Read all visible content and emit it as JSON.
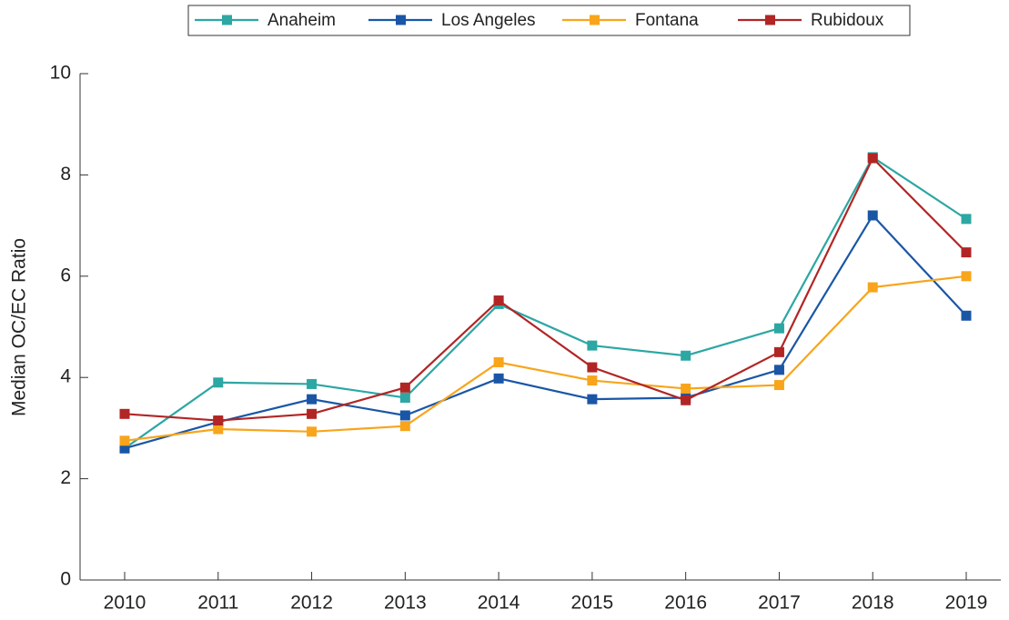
{
  "chart_data": {
    "type": "line",
    "ylabel": "Median OC/EC Ratio",
    "categories": [
      "2010",
      "2011",
      "2012",
      "2013",
      "2014",
      "2015",
      "2016",
      "2017",
      "2018",
      "2019"
    ],
    "series": [
      {
        "name": "Anaheim",
        "color": "#2ca7a4",
        "values": [
          2.6,
          3.9,
          3.87,
          3.6,
          5.45,
          4.63,
          4.43,
          4.97,
          8.35,
          7.13
        ]
      },
      {
        "name": "Los Angeles",
        "color": "#1a56a6",
        "values": [
          2.6,
          3.12,
          3.57,
          3.25,
          3.98,
          3.57,
          3.6,
          4.15,
          7.2,
          5.22
        ]
      },
      {
        "name": "Fontana",
        "color": "#f8a51c",
        "values": [
          2.75,
          2.98,
          2.93,
          3.04,
          4.3,
          3.94,
          3.78,
          3.85,
          5.78,
          6.0
        ]
      },
      {
        "name": "Rubidoux",
        "color": "#b22525",
        "values": [
          3.28,
          3.15,
          3.28,
          3.8,
          5.52,
          4.2,
          3.55,
          4.5,
          8.33,
          6.47
        ]
      }
    ],
    "ylim": [
      0,
      10
    ],
    "yticks": [
      0,
      2,
      4,
      6,
      8,
      10
    ],
    "grid": false,
    "legend": "top"
  }
}
